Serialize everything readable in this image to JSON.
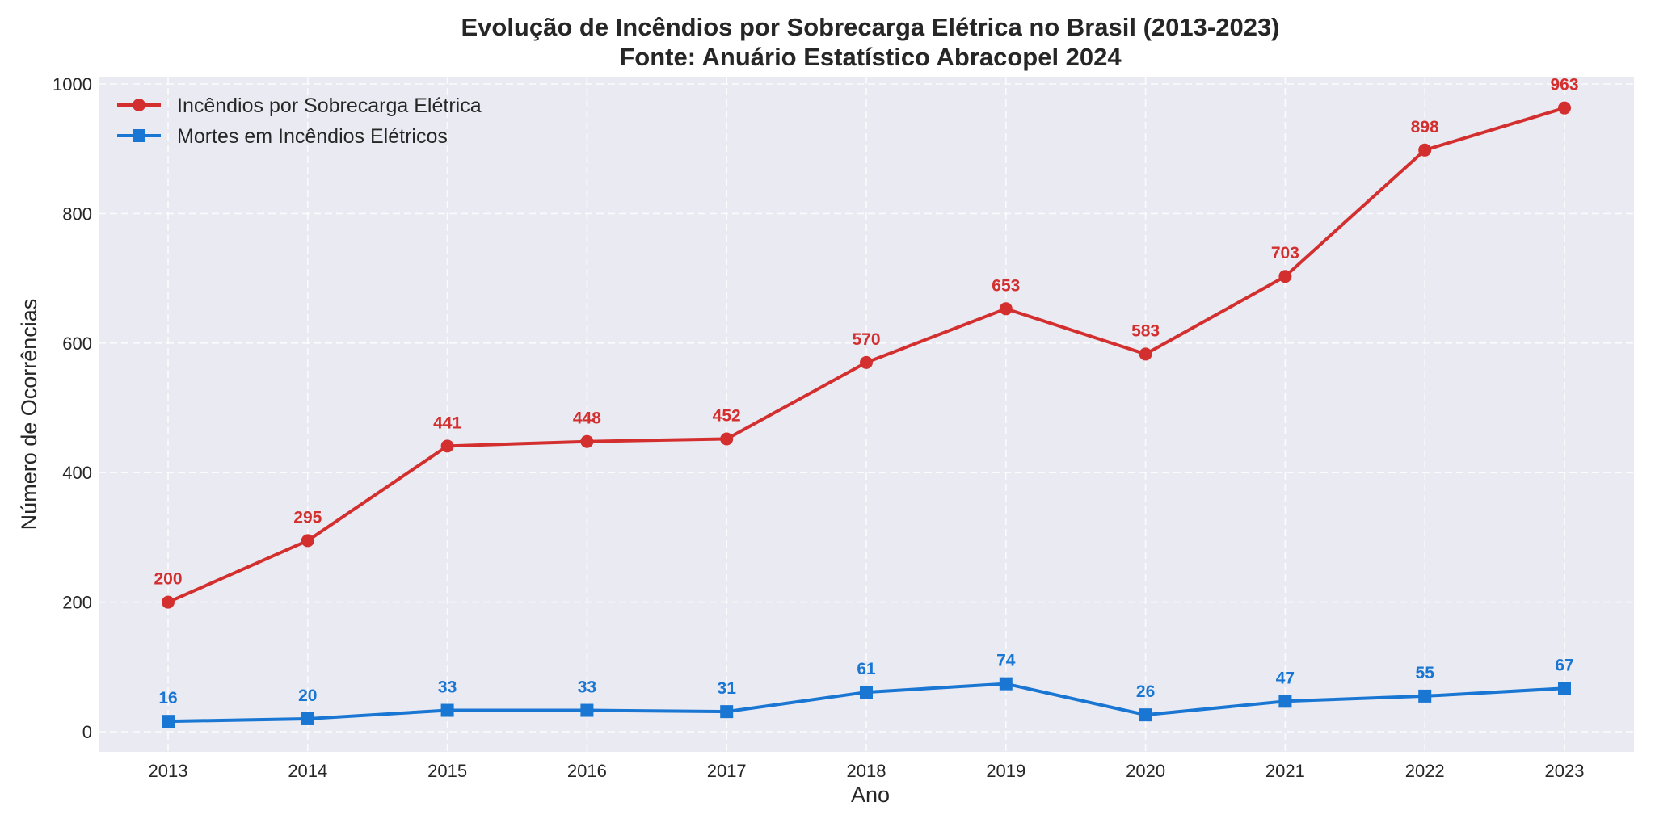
{
  "chart_data": {
    "type": "line",
    "title": "Evolução de Incêndios por Sobrecarga Elétrica no Brasil (2013-2023)",
    "subtitle": "Fonte: Anuário Estatístico Abracopel 2024",
    "xlabel": "Ano",
    "ylabel": "Número de Ocorrências",
    "x": [
      "2013",
      "2014",
      "2015",
      "2016",
      "2017",
      "2018",
      "2019",
      "2020",
      "2021",
      "2022",
      "2023"
    ],
    "xlim": [
      2012.5,
      2023.5
    ],
    "ylim": [
      -30,
      1013
    ],
    "yticks": [
      0,
      200,
      400,
      600,
      800,
      1000
    ],
    "grid": true,
    "legend_position": "top-left",
    "background_color": "#eaeaf2",
    "series": [
      {
        "name": "Incêndios por Sobrecarga Elétrica",
        "color": "#d32f2f",
        "marker": "circle",
        "values": [
          200,
          295,
          441,
          448,
          452,
          570,
          653,
          583,
          703,
          898,
          963
        ]
      },
      {
        "name": "Mortes em Incêndios Elétricos",
        "color": "#1976d2",
        "marker": "square",
        "values": [
          16,
          20,
          33,
          33,
          31,
          61,
          74,
          26,
          47,
          55,
          67
        ]
      }
    ]
  }
}
